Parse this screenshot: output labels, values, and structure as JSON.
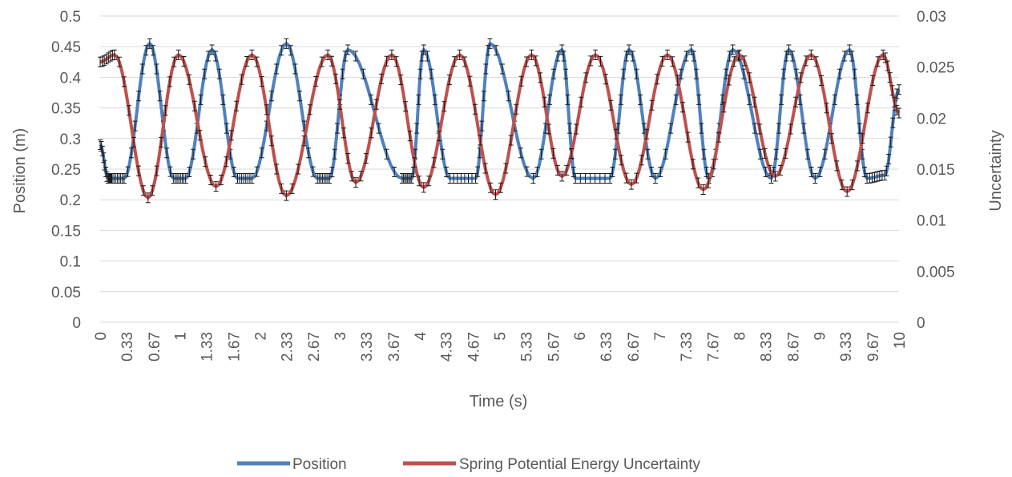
{
  "chart_data": {
    "type": "line",
    "xlabel": "Time (s)",
    "ylabel": "Position (m)",
    "y2label": "Uncertainty",
    "ylim": [
      0,
      0.5
    ],
    "y2lim": [
      0,
      0.03
    ],
    "yticks": [
      "0",
      "0.05",
      "0.1",
      "0.15",
      "0.2",
      "0.25",
      "0.3",
      "0.35",
      "0.4",
      "0.45",
      "0.5"
    ],
    "y2ticks": [
      "0",
      "0.005",
      "0.01",
      "0.015",
      "0.02",
      "0.025",
      "0.03"
    ],
    "xlim": [
      0,
      10
    ],
    "xticks": [
      "0",
      "0.33",
      "0.67",
      "1",
      "1.33",
      "1.67",
      "2",
      "2.33",
      "2.67",
      "3",
      "3.33",
      "3.67",
      "4",
      "4.33",
      "4.67",
      "5",
      "5.33",
      "5.67",
      "6",
      "6.33",
      "6.67",
      "7",
      "7.33",
      "7.67",
      "8",
      "8.33",
      "8.67",
      "9",
      "9.33",
      "9.67",
      "10"
    ],
    "grid": true,
    "legend_position": "bottom",
    "series": [
      {
        "name": "Position",
        "color": "#4f81bd",
        "axis": "left",
        "error_bars": true,
        "x": [
          0,
          0.1,
          0.15,
          0.3,
          0.62,
          0.92,
          1.07,
          1.4,
          1.72,
          1.9,
          2.33,
          2.72,
          2.87,
          3.1,
          3.78,
          3.9,
          4.05,
          4.38,
          4.7,
          4.88,
          5.42,
          5.78,
          5.95,
          6.38,
          6.62,
          6.95,
          7.4,
          7.62,
          7.92,
          8.4,
          8.62,
          8.95,
          9.38,
          9.6,
          9.82,
          10
        ],
        "y": [
          0.29,
          0.235,
          0.235,
          0.235,
          0.455,
          0.235,
          0.235,
          0.445,
          0.235,
          0.235,
          0.455,
          0.235,
          0.235,
          0.445,
          0.235,
          0.235,
          0.445,
          0.235,
          0.235,
          0.455,
          0.235,
          0.445,
          0.235,
          0.235,
          0.445,
          0.235,
          0.445,
          0.235,
          0.445,
          0.235,
          0.445,
          0.235,
          0.445,
          0.235,
          0.24,
          0.38
        ]
      },
      {
        "name": "Spring Potential Energy Uncertainty",
        "color": "#c0504d",
        "axis": "right",
        "error_bars": true,
        "x": [
          0,
          0.18,
          0.6,
          0.98,
          1.45,
          1.9,
          2.33,
          2.85,
          3.2,
          3.65,
          4.05,
          4.5,
          4.95,
          5.4,
          5.78,
          6.2,
          6.65,
          7.1,
          7.55,
          8.0,
          8.45,
          8.9,
          9.35,
          9.8,
          10
        ],
        "y": [
          0.0255,
          0.0262,
          0.0122,
          0.0262,
          0.0133,
          0.0262,
          0.0124,
          0.0262,
          0.0137,
          0.0262,
          0.0132,
          0.0262,
          0.0125,
          0.0262,
          0.0143,
          0.0262,
          0.0135,
          0.0262,
          0.013,
          0.0262,
          0.0143,
          0.0262,
          0.0128,
          0.0262,
          0.0205
        ]
      }
    ]
  }
}
